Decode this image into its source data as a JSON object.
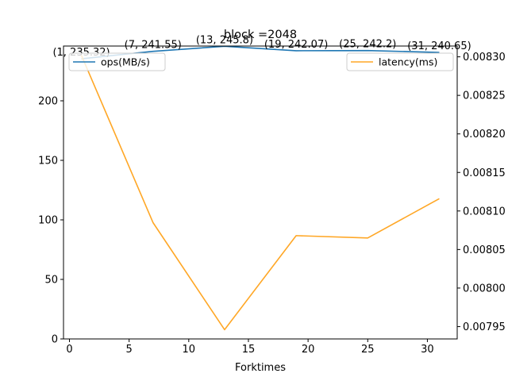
{
  "chart_data": {
    "type": "line",
    "title": "block =2048",
    "xlabel": "Forktimes",
    "ylabel": "",
    "ylabel_right": "",
    "x": [
      1,
      7,
      13,
      19,
      25,
      31
    ],
    "xlim": [
      -0.5,
      32.5
    ],
    "x_ticks": [
      0,
      5,
      10,
      15,
      20,
      25,
      30
    ],
    "grid": false,
    "series": [
      {
        "name": "ops(MB/s)",
        "axis": "left",
        "color": "#1f77b4",
        "values": [
          235.32,
          241.55,
          245.8,
          242.07,
          242.2,
          240.65
        ],
        "annotations": [
          "(1, 235.32)",
          "(7, 241.55)",
          "(13, 245.8)",
          "(19, 242.07)",
          "(25, 242.2)",
          "(31, 240.65)"
        ],
        "ylim": [
          0,
          246
        ],
        "y_ticks": [
          0,
          50,
          100,
          150,
          200
        ]
      },
      {
        "name": "latency(ms)",
        "axis": "right",
        "color": "#ffa726",
        "values": [
          0.008302,
          0.008085,
          0.007946,
          0.008068,
          0.008065,
          0.008116
        ],
        "ylim": [
          0.007934,
          0.008314
        ],
        "y_ticks": [
          0.00795,
          0.008,
          0.00805,
          0.0081,
          0.00815,
          0.0082,
          0.00825,
          0.0083
        ],
        "y_tick_labels": [
          "0.00795",
          "0.00800",
          "0.00805",
          "0.00810",
          "0.00815",
          "0.00820",
          "0.00825",
          "0.00830"
        ]
      }
    ],
    "legends": [
      {
        "series": "ops(MB/s)",
        "placement": "upper-left"
      },
      {
        "series": "latency(ms)",
        "placement": "upper-right"
      }
    ]
  }
}
